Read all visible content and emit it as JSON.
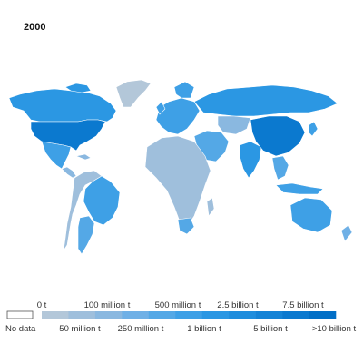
{
  "year": "2000",
  "colors": {
    "nodata": "#ffffff",
    "ocean": "#ffffff",
    "borders": "#ffffff",
    "bins": [
      "#b3c7d9",
      "#9fbfdc",
      "#8ab8e0",
      "#6fb0e6",
      "#54a8e6",
      "#3ea0e6",
      "#2b97e3",
      "#1f8ddd",
      "#1583d6",
      "#0b79cf",
      "#026fc6"
    ]
  },
  "legend": {
    "nodata_label": "No data",
    "top_labels": [
      "0 t",
      "100 million t",
      "500 million t",
      "2.5 billion t",
      "7.5 billion t"
    ],
    "bottom_labels": [
      "50 million t",
      "250 million t",
      "1 billion t",
      "5 billion t",
      ">10 billion t"
    ]
  },
  "regions": [
    {
      "name": "Canada",
      "bin": 6
    },
    {
      "name": "United States",
      "bin": 9
    },
    {
      "name": "Mexico",
      "bin": 5
    },
    {
      "name": "Greenland",
      "bin": 0
    },
    {
      "name": "Central America",
      "bin": 2
    },
    {
      "name": "Brazil",
      "bin": 5
    },
    {
      "name": "Argentina",
      "bin": 4
    },
    {
      "name": "Rest of South America",
      "bin": 1
    },
    {
      "name": "Europe",
      "bin": 5
    },
    {
      "name": "Russia",
      "bin": 6
    },
    {
      "name": "Africa",
      "bin": 1
    },
    {
      "name": "South Africa",
      "bin": 4
    },
    {
      "name": "Middle East",
      "bin": 4
    },
    {
      "name": "Central Asia",
      "bin": 2
    },
    {
      "name": "India",
      "bin": 6
    },
    {
      "name": "China",
      "bin": 9
    },
    {
      "name": "Japan",
      "bin": 5
    },
    {
      "name": "Southeast Asia",
      "bin": 4
    },
    {
      "name": "Indonesia",
      "bin": 5
    },
    {
      "name": "Australia",
      "bin": 5
    },
    {
      "name": "New Zealand",
      "bin": 3
    }
  ]
}
